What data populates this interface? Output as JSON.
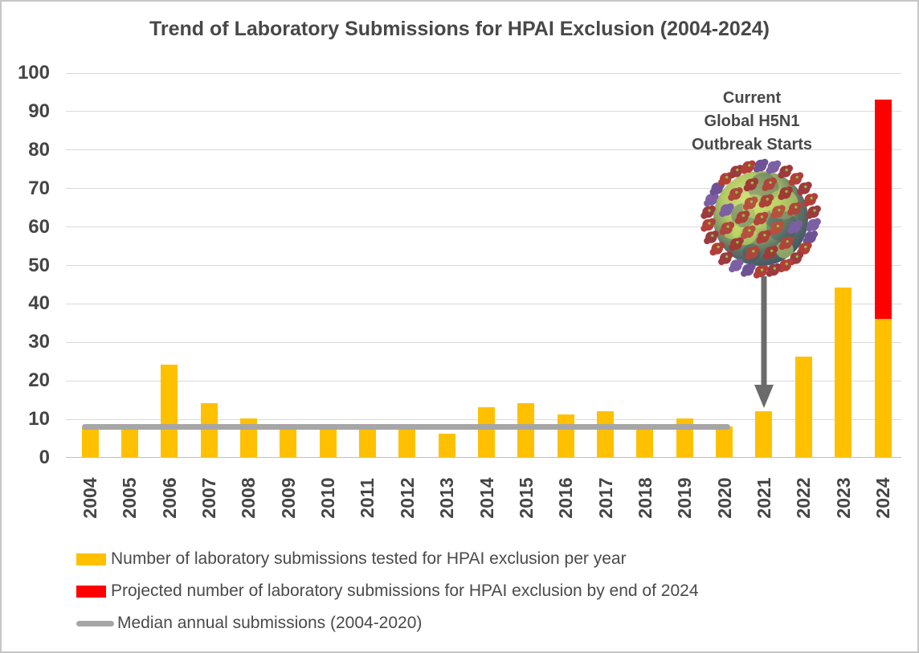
{
  "chart_data": {
    "type": "bar",
    "title": "Trend of Laboratory Submissions for HPAI Exclusion (2004-2024)",
    "categories": [
      "2004",
      "2005",
      "2006",
      "2007",
      "2008",
      "2009",
      "2010",
      "2011",
      "2012",
      "2013",
      "2014",
      "2015",
      "2016",
      "2017",
      "2018",
      "2019",
      "2020",
      "2021",
      "2022",
      "2023",
      "2024"
    ],
    "series": [
      {
        "name": "Number of laboratory submissions tested for HPAI exclusion per year",
        "color": "#FFC000",
        "values": [
          8,
          8,
          24,
          14,
          10,
          7,
          7,
          7,
          8,
          6,
          13,
          14,
          11,
          12,
          8,
          10,
          8,
          12,
          26,
          44,
          36
        ]
      },
      {
        "name": "Projected number of laboratory submissions for HPAI exclusion by end of 2024",
        "color": "#FF0000",
        "values": [
          0,
          0,
          0,
          0,
          0,
          0,
          0,
          0,
          0,
          0,
          0,
          0,
          0,
          0,
          0,
          0,
          0,
          0,
          0,
          0,
          57
        ],
        "stacked_on_previous": true,
        "projected_2024_total": 93
      }
    ],
    "median_line": {
      "label": "Median annual submissions (2004-2020)",
      "value": 8,
      "span_categories": [
        "2004",
        "2020"
      ],
      "color": "#a6a6a6"
    },
    "xlabel": "",
    "ylabel": "",
    "ylim": [
      0,
      100
    ],
    "y_ticks": [
      0,
      10,
      20,
      30,
      40,
      50,
      60,
      70,
      80,
      90,
      100
    ],
    "grid": true,
    "legend_position": "bottom"
  },
  "annotation": {
    "lines": [
      "Current",
      "Global H5N1",
      "Outbreak Starts"
    ]
  },
  "legend": {
    "items": [
      {
        "label": "Number of laboratory submissions tested for HPAI exclusion per year",
        "color": "#FFC000",
        "shape": "rect"
      },
      {
        "label": "Projected number of laboratory submissions for HPAI exclusion by end of 2024",
        "color": "#FF0000",
        "shape": "rect"
      },
      {
        "label": "Median annual submissions (2004-2020)",
        "color": "#a6a6a6",
        "shape": "line"
      }
    ]
  },
  "colors": {
    "actual_bar": "#FFC000",
    "projected_bar": "#FF0000",
    "median_line": "#a6a6a6",
    "gridline": "#dadada",
    "axis_line": "#bfbfbf",
    "text": "#484848",
    "arrow": "#6b6b6b"
  }
}
